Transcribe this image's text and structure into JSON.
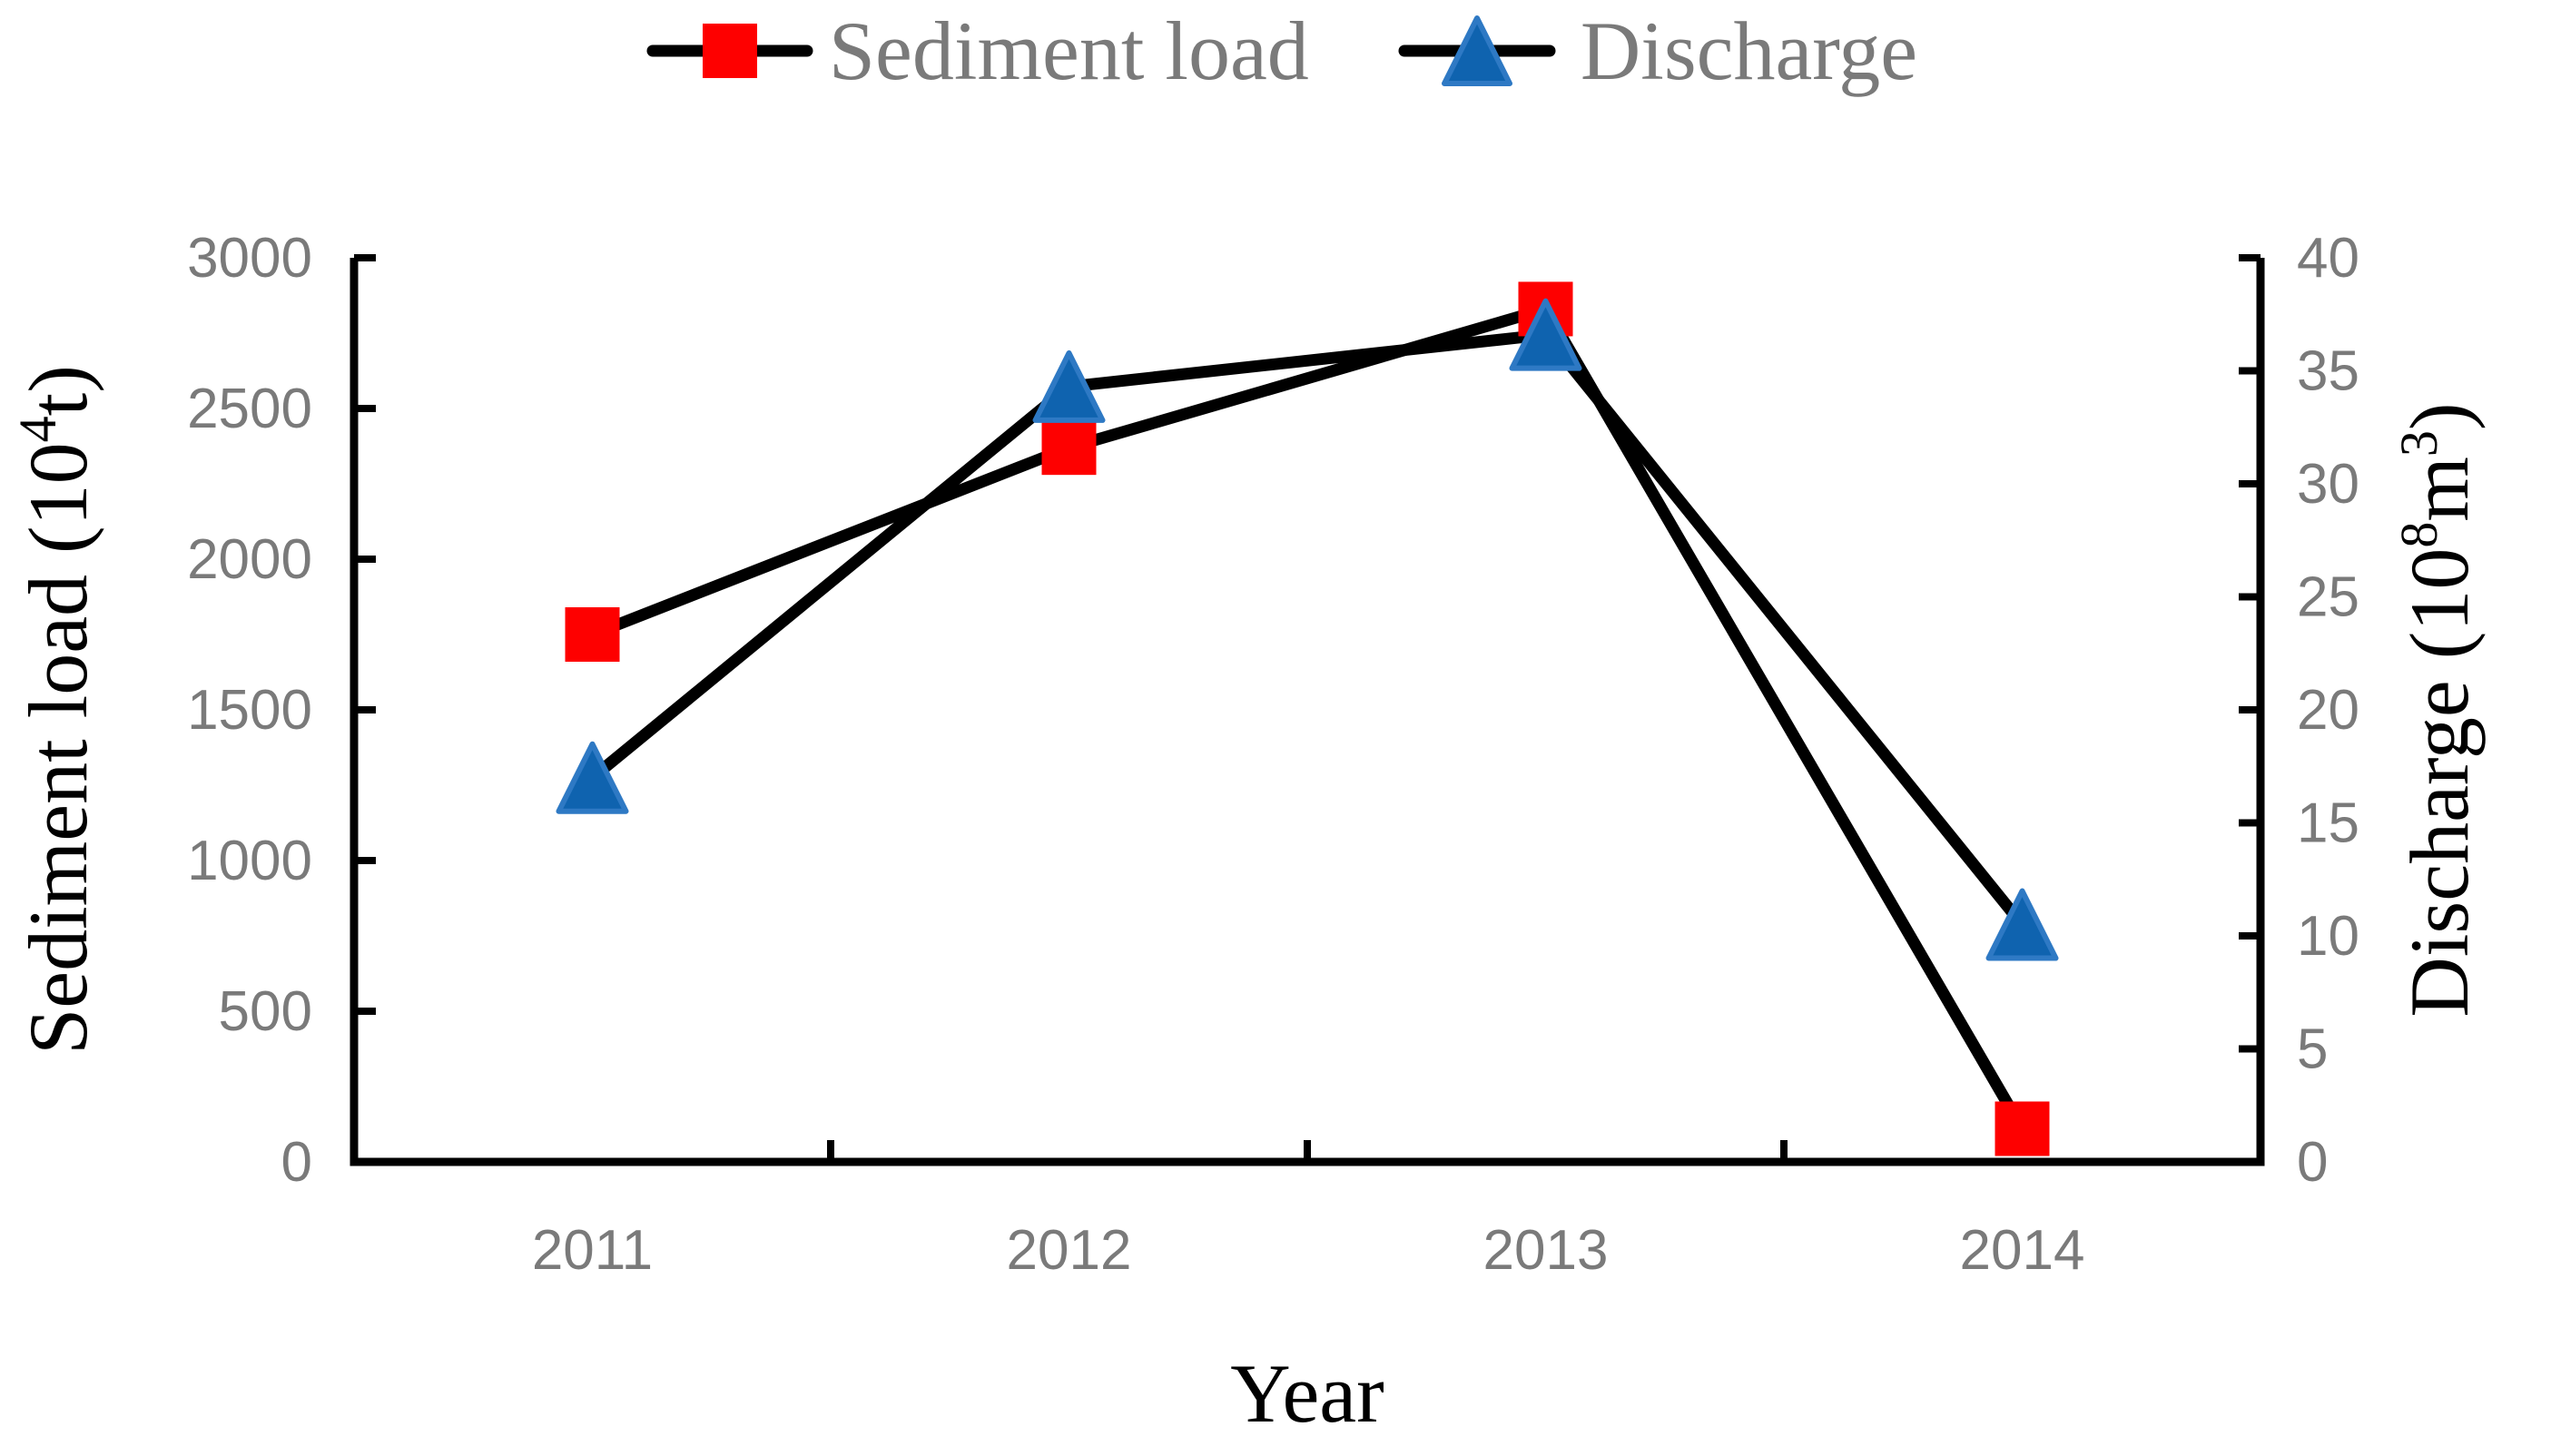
{
  "chart_data": {
    "type": "line",
    "categories": [
      "2011",
      "2012",
      "2013",
      "2014"
    ],
    "series": [
      {
        "name": "Sediment load",
        "axis": "left",
        "marker": "square",
        "values": [
          1750,
          2370,
          2830,
          110
        ],
        "marker_color": "#fe0000",
        "marker_edge_color": "#fe0000",
        "line_color": "#000000"
      },
      {
        "name": "Discharge",
        "axis": "right",
        "marker": "triangle",
        "values": [
          17,
          34.3,
          36.6,
          10.5
        ],
        "marker_color": "#0f63af",
        "marker_edge_color": "#2e79c4",
        "line_color": "#000000"
      }
    ],
    "xlabel": "Year",
    "x_tick_labels": [
      "2011",
      "2012",
      "2013",
      "2014"
    ],
    "y_left": {
      "min": 0,
      "max": 3000,
      "step": 500,
      "tick_labels": [
        "0",
        "500",
        "1000",
        "1500",
        "2000",
        "2500",
        "3000"
      ],
      "title_text": "Sediment load (10⁴t)",
      "title_parts": [
        {
          "t": "Sediment load (10"
        },
        {
          "t": "4",
          "sup": true
        },
        {
          "t": "t)"
        }
      ]
    },
    "y_right": {
      "min": 0,
      "max": 40,
      "step": 5,
      "tick_labels": [
        "0",
        "5",
        "10",
        "15",
        "20",
        "25",
        "30",
        "35",
        "40"
      ],
      "title_text": "Discharge (10⁸m³)",
      "title_parts": [
        {
          "t": "Discharge (10"
        },
        {
          "t": "8",
          "sup": true
        },
        {
          "t": "m"
        },
        {
          "t": "3",
          "sup": true
        },
        {
          "t": ")"
        }
      ]
    },
    "legend_position": "top-center",
    "grid": false,
    "axis_color": "#000000",
    "tick_label_color": "#7a7a7a",
    "title_color": "#000000",
    "background_color": "#ffffff"
  },
  "legend": {
    "items": [
      {
        "label": "Sediment load",
        "marker": "square",
        "marker_color": "#fe0000",
        "marker_edge_color": "#fe0000",
        "line_color": "#000000"
      },
      {
        "label": "Discharge",
        "marker": "triangle",
        "marker_color": "#0f63af",
        "marker_edge_color": "#2e79c4",
        "line_color": "#000000"
      }
    ]
  }
}
